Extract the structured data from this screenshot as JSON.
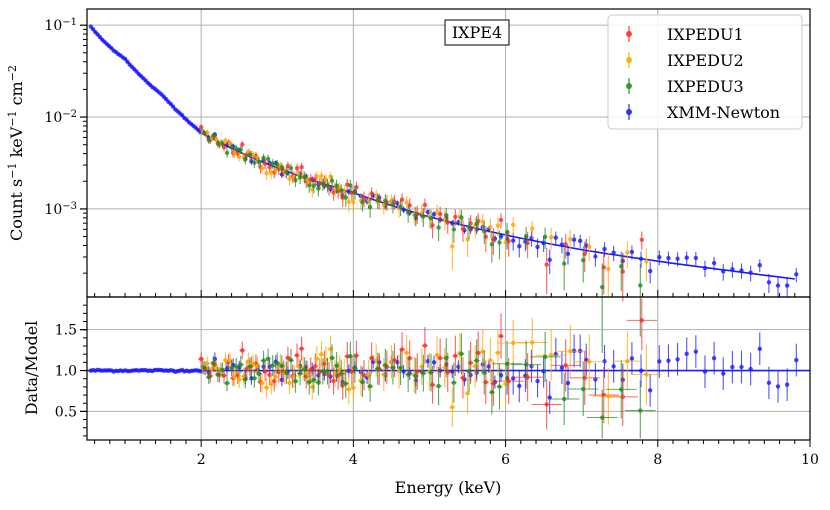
{
  "colors": {
    "IXPEDU1": "#ff2a2a",
    "IXPEDU2": "#ffa500",
    "IXPEDU3": "#1f8c1f",
    "XMM-Newton": "#1a1aff"
  },
  "chart_data": [
    {
      "type": "scatter",
      "panel": "spectrum",
      "annotation": "IXPE4",
      "ylabel": "Count s⁻¹ keV⁻¹ cm⁻²",
      "xlim": [
        0.5,
        10
      ],
      "ylim": [
        0.00011,
        0.15
      ],
      "yscale": "log",
      "y_ticks": [
        {
          "value": 0.1,
          "mant": "10",
          "exp": "−1"
        },
        {
          "value": 0.01,
          "mant": "10",
          "exp": "−2"
        },
        {
          "value": 0.001,
          "mant": "10",
          "exp": "−3"
        }
      ],
      "grid": true,
      "legend": {
        "placement": "top-right",
        "entries": [
          "IXPEDU1",
          "IXPEDU2",
          "IXPEDU3",
          "XMM-Newton"
        ]
      },
      "model": {
        "name": "XMM-Newton",
        "x": [
          0.5,
          1.0,
          1.5,
          2.0,
          3.0,
          4.0,
          5.0,
          6.0,
          7.0,
          8.0,
          9.0,
          10.0
        ],
        "y": [
          0.11,
          0.043,
          0.017,
          0.0068,
          0.0028,
          0.0015,
          0.00082,
          0.00052,
          0.00036,
          0.00027,
          0.00021,
          0.000165
        ]
      },
      "series": [
        {
          "name": "XMM-Newton",
          "x_range": [
            0.55,
            9.85
          ],
          "scatter": 0.05
        },
        {
          "name": "IXPEDU1",
          "x_range": [
            2.0,
            7.9
          ],
          "scatter": 0.12
        },
        {
          "name": "IXPEDU2",
          "x_range": [
            2.0,
            7.9
          ],
          "scatter": 0.12
        },
        {
          "name": "IXPEDU3",
          "x_range": [
            2.0,
            7.9
          ],
          "scatter": 0.12
        }
      ]
    },
    {
      "type": "scatter",
      "panel": "ratio",
      "xlabel": "Energy (keV)",
      "ylabel": "Data/Model",
      "xlim": [
        0.5,
        10
      ],
      "ylim": [
        0.15,
        1.9
      ],
      "x_ticks": [
        2,
        4,
        6,
        8,
        10
      ],
      "y_ticks": [
        0.5,
        1.0,
        1.5
      ],
      "reference_line": 1.0,
      "grid": true
    }
  ]
}
